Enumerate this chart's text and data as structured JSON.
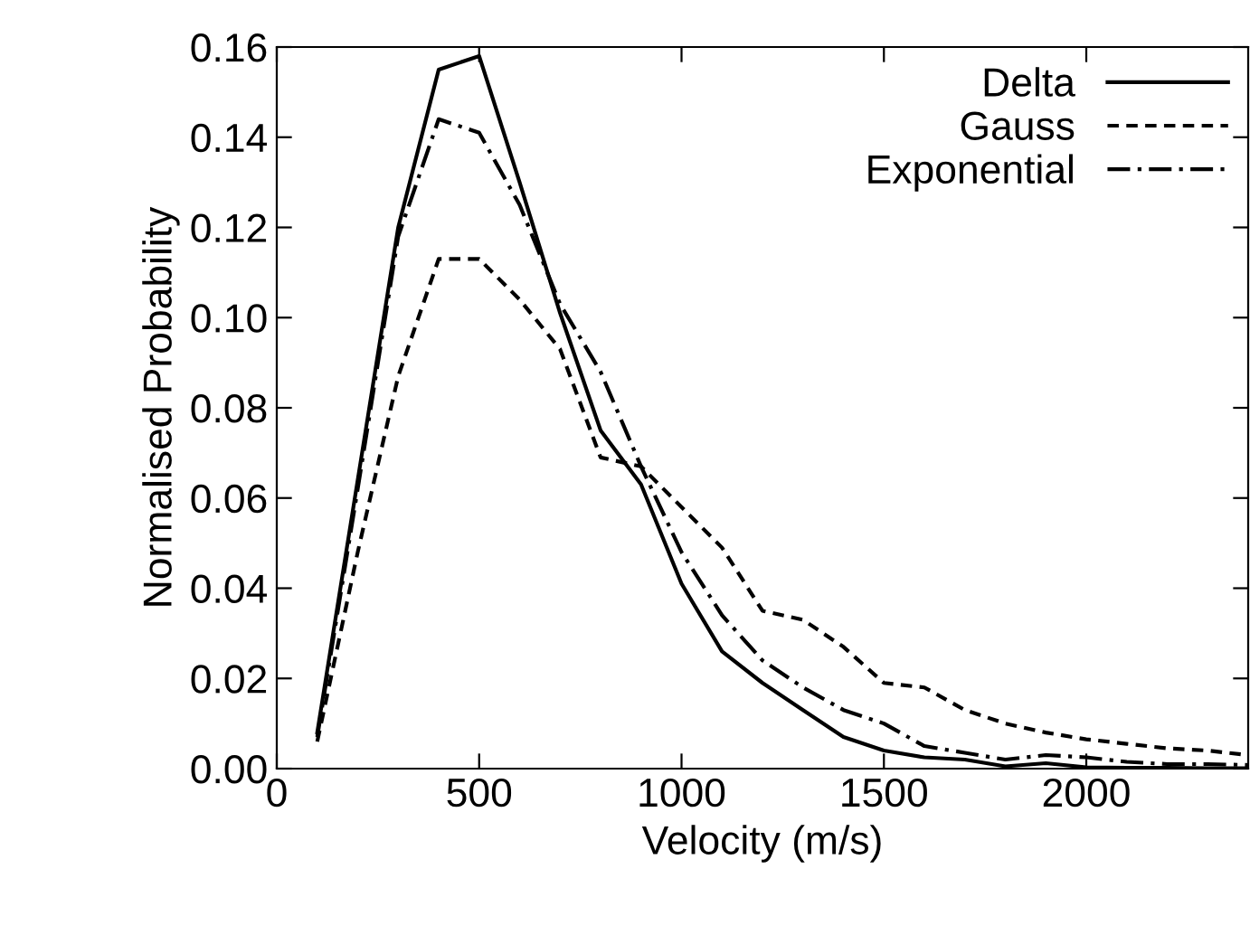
{
  "chart_data": {
    "type": "line",
    "xlabel": "Velocity (m/s)",
    "ylabel": "Normalised Probability",
    "x": [
      100,
      200,
      300,
      400,
      500,
      600,
      700,
      800,
      900,
      1000,
      1100,
      1200,
      1300,
      1400,
      1500,
      1600,
      1700,
      1800,
      1900,
      2000,
      2100,
      2200,
      2300,
      2400
    ],
    "series": [
      {
        "name": "Delta",
        "color": "#000000",
        "line_style": "solid",
        "values": [
          0.008,
          0.064,
          0.12,
          0.155,
          0.158,
          0.13,
          0.101,
          0.075,
          0.063,
          0.041,
          0.026,
          0.019,
          0.013,
          0.007,
          0.004,
          0.0025,
          0.002,
          0.0005,
          0.0012,
          0.0003,
          0.0002,
          0.0002,
          0.0001,
          0.0001
        ]
      },
      {
        "name": "Gauss",
        "color": "#000000",
        "line_style": "dashed",
        "values": [
          0.006,
          0.048,
          0.087,
          0.113,
          0.113,
          0.104,
          0.093,
          0.069,
          0.067,
          0.058,
          0.049,
          0.035,
          0.033,
          0.027,
          0.019,
          0.018,
          0.013,
          0.01,
          0.008,
          0.0065,
          0.0055,
          0.0045,
          0.004,
          0.003
        ]
      },
      {
        "name": "Exponential",
        "color": "#000000",
        "line_style": "dashdot",
        "values": [
          0.007,
          0.062,
          0.118,
          0.144,
          0.141,
          0.125,
          0.103,
          0.088,
          0.067,
          0.048,
          0.034,
          0.024,
          0.018,
          0.013,
          0.01,
          0.005,
          0.0035,
          0.002,
          0.003,
          0.0025,
          0.0015,
          0.001,
          0.001,
          0.0008
        ]
      }
    ],
    "xlim": [
      0,
      2400
    ],
    "ylim": [
      0,
      0.16
    ],
    "xticks": [
      0,
      500,
      1000,
      1500,
      2000
    ],
    "yticks": [
      {
        "value": 0,
        "label": "0.00"
      },
      {
        "value": 0.02,
        "label": "0.02"
      },
      {
        "value": 0.04,
        "label": "0.04"
      },
      {
        "value": 0.06,
        "label": "0.06"
      },
      {
        "value": 0.08,
        "label": "0.08"
      },
      {
        "value": 0.1,
        "label": "0.10"
      },
      {
        "value": 0.12,
        "label": "0.12"
      },
      {
        "value": 0.14,
        "label": "0.14"
      },
      {
        "value": 0.16,
        "label": "0.16"
      }
    ],
    "grid": false,
    "legend": "top right"
  }
}
